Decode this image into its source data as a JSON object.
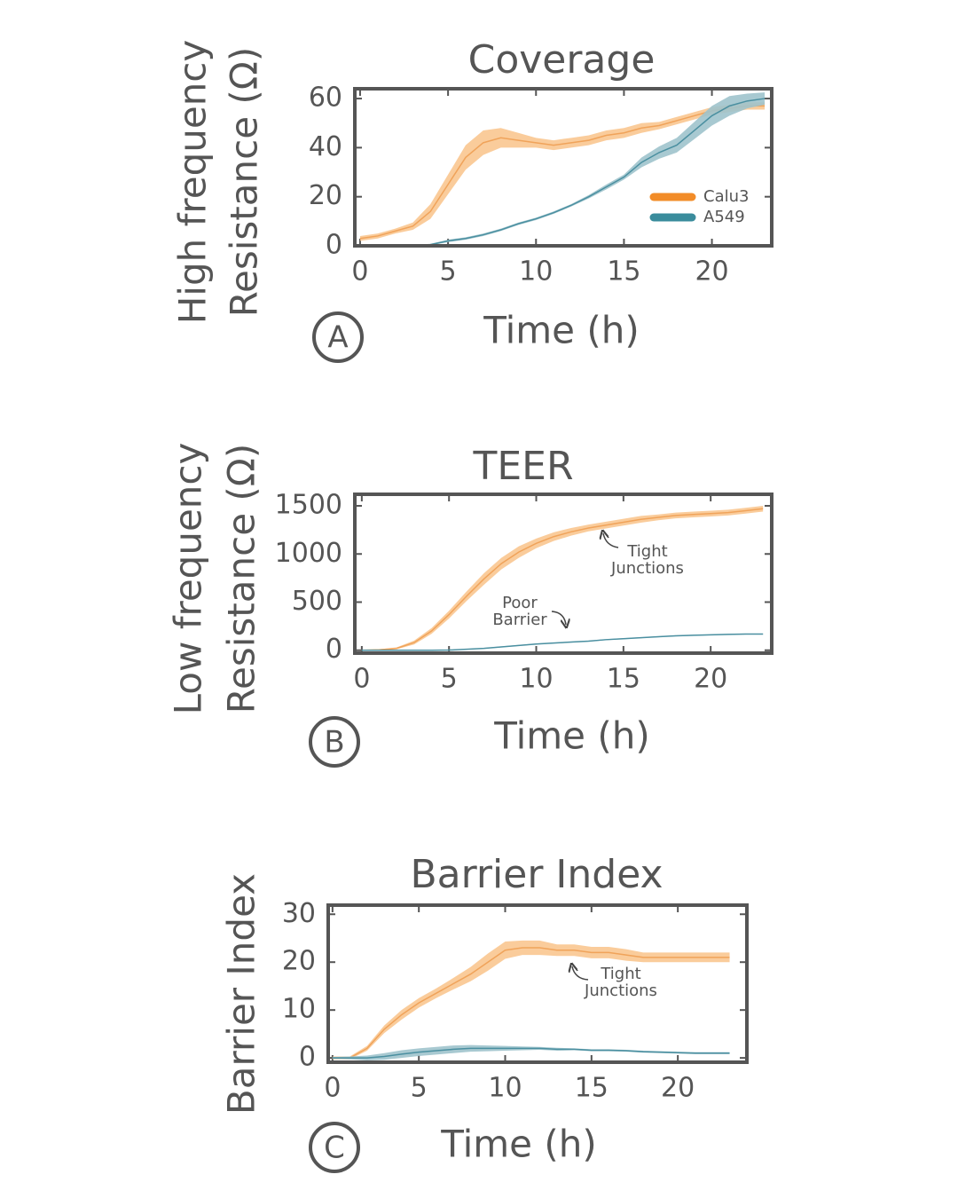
{
  "chart_data": [
    {
      "type": "line",
      "panel": "A",
      "title": "Coverage",
      "ylabel": [
        "High frequency",
        "Resistance (Ω)"
      ],
      "xlabel": "Time (h)",
      "x": [
        0,
        1,
        2,
        3,
        4,
        5,
        6,
        7,
        8,
        9,
        10,
        11,
        12,
        13,
        14,
        15,
        16,
        17,
        18,
        19,
        20,
        21,
        22,
        23
      ],
      "xlim": [
        -0.3,
        23.4
      ],
      "xticks": [
        0,
        5,
        10,
        15,
        20
      ],
      "ylim": [
        0,
        64
      ],
      "yticks": [
        0,
        20,
        40,
        60
      ],
      "legend": "lower right",
      "series": [
        {
          "name": "Calu3",
          "color": "#f28c28",
          "line_color": "#f0a35a",
          "band_color": "#f9c790",
          "values": [
            3,
            4,
            6,
            8,
            14,
            25,
            36,
            42,
            44,
            43,
            42,
            41,
            42,
            43,
            45,
            46,
            48,
            49,
            51,
            53,
            55,
            56,
            57,
            57
          ],
          "error": [
            1,
            1,
            1,
            1.5,
            3,
            4,
            5,
            5,
            4,
            3,
            2,
            2,
            2,
            2,
            2,
            2,
            2,
            1.5,
            1.5,
            1.5,
            1.5,
            1.5,
            1.5,
            1.5
          ]
        },
        {
          "name": "A549",
          "color": "#3a8c9c",
          "line_color": "#4a8fa0",
          "band_color": "#9fc3cc",
          "values": [
            0,
            0,
            0,
            0,
            0.5,
            2,
            3,
            4.5,
            6.5,
            9,
            11,
            13.5,
            16.5,
            20,
            24,
            28,
            34,
            38,
            41,
            47,
            53,
            57,
            59,
            60
          ],
          "error": [
            0.3,
            0.3,
            0.3,
            0.3,
            0.3,
            0.5,
            0.5,
            0.5,
            0.5,
            0.5,
            0.5,
            0.5,
            0.5,
            0.7,
            1,
            1,
            2,
            2.5,
            3,
            3.5,
            4,
            4,
            3,
            2.5
          ]
        }
      ]
    },
    {
      "type": "line",
      "panel": "B",
      "title": "TEER",
      "ylabel": [
        "Low frequency",
        "Resistance (Ω)"
      ],
      "xlabel": "Time (h)",
      "x": [
        0,
        1,
        2,
        3,
        4,
        5,
        6,
        7,
        8,
        9,
        10,
        11,
        12,
        13,
        14,
        15,
        16,
        17,
        18,
        19,
        20,
        21,
        22,
        23
      ],
      "xlim": [
        -0.4,
        23.5
      ],
      "xticks": [
        0,
        5,
        10,
        15,
        20
      ],
      "ylim": [
        -30,
        1620
      ],
      "yticks": [
        0,
        500,
        1000,
        1500
      ],
      "annotations": [
        [
          "Tight",
          "Junctions"
        ],
        [
          "Poor",
          "Barrier"
        ]
      ],
      "series": [
        {
          "color": "#f28c28",
          "line_color": "#f0a35a",
          "band_color": "#f9c790",
          "values": [
            0,
            5,
            20,
            80,
            200,
            370,
            560,
            740,
            900,
            1020,
            1110,
            1180,
            1230,
            1270,
            1300,
            1330,
            1360,
            1380,
            1400,
            1410,
            1420,
            1430,
            1450,
            1470
          ],
          "error": [
            5,
            5,
            10,
            20,
            30,
            40,
            50,
            60,
            60,
            60,
            50,
            45,
            40,
            35,
            35,
            35,
            35,
            30,
            30,
            30,
            30,
            30,
            30,
            30
          ]
        },
        {
          "color": "#3a8c9c",
          "line_color": "#4a8fa0",
          "band_color": "#9fc3cc",
          "values": [
            0,
            0,
            0,
            0,
            0,
            2,
            10,
            20,
            35,
            50,
            65,
            75,
            85,
            95,
            110,
            120,
            130,
            140,
            150,
            155,
            160,
            165,
            168,
            168
          ],
          "error": [
            3,
            3,
            3,
            3,
            3,
            3,
            4,
            4,
            5,
            5,
            5,
            5,
            5,
            5,
            5,
            5,
            5,
            5,
            5,
            5,
            5,
            5,
            5,
            5
          ]
        }
      ]
    },
    {
      "type": "line",
      "panel": "C",
      "title": "Barrier Index",
      "ylabel": [
        "Barrier Index"
      ],
      "xlabel": "Time (h)",
      "x": [
        0,
        1,
        2,
        3,
        4,
        5,
        6,
        7,
        8,
        9,
        10,
        11,
        12,
        13,
        14,
        15,
        16,
        17,
        18,
        19,
        20,
        21,
        22,
        23
      ],
      "xlim": [
        -0.25,
        24
      ],
      "xticks": [
        0,
        5,
        10,
        15,
        20
      ],
      "ylim": [
        -0.9,
        31.9
      ],
      "yticks": [
        0,
        10,
        20,
        30
      ],
      "annotations": [
        [
          "Tight",
          "Junctions"
        ]
      ],
      "series": [
        {
          "color": "#f28c28",
          "line_color": "#f0a35a",
          "band_color": "#f9c790",
          "values": [
            0,
            0,
            2,
            6,
            9,
            11.5,
            13.5,
            15.5,
            17.5,
            20,
            22.5,
            23,
            23,
            22.5,
            22.5,
            22,
            22,
            21.5,
            21,
            21,
            21,
            21,
            21,
            21
          ],
          "error": [
            0.3,
            0.3,
            0.5,
            0.8,
            1,
            1,
            1,
            1.2,
            1.5,
            1.8,
            1.8,
            1.5,
            1.5,
            1.2,
            1.2,
            1.2,
            1.2,
            1.2,
            1,
            1,
            1,
            1,
            1,
            1
          ]
        },
        {
          "color": "#3a8c9c",
          "line_color": "#4a8fa0",
          "band_color": "#9fc3cc",
          "values": [
            0,
            0,
            0,
            0.3,
            0.8,
            1.2,
            1.5,
            1.8,
            2,
            2,
            2,
            2,
            2,
            1.8,
            1.8,
            1.6,
            1.6,
            1.5,
            1.3,
            1.2,
            1.1,
            1,
            1,
            1
          ],
          "error": [
            0.2,
            0.3,
            0.5,
            0.7,
            0.8,
            0.8,
            0.8,
            0.8,
            0.7,
            0.6,
            0.5,
            0.4,
            0.3,
            0.3,
            0.2,
            0.2,
            0.2,
            0.2,
            0.2,
            0.2,
            0.2,
            0.2,
            0.2,
            0.2
          ]
        }
      ]
    }
  ]
}
